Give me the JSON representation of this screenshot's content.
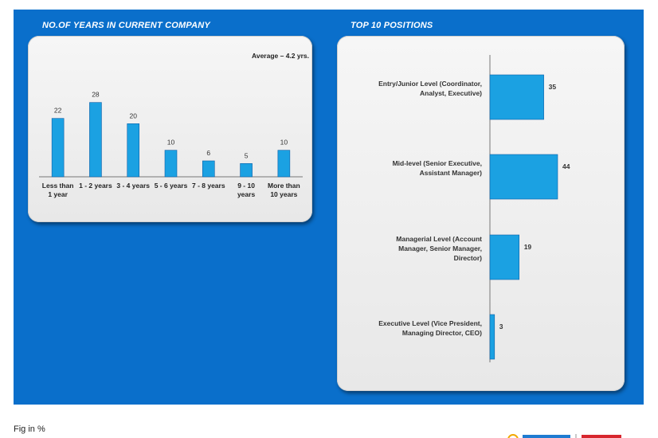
{
  "page": {
    "fig_note": "Fig in %"
  },
  "colors": {
    "background": "#0a6fcb",
    "bar": "#1ba1e2",
    "panel": "#eeeeee"
  },
  "chart_data": [
    {
      "type": "bar",
      "title": "NO.OF YEARS IN CURRENT COMPANY",
      "annotation": "Average – 4.2 yrs.",
      "categories": [
        "Less than 1 year",
        "1 - 2 years",
        "3 - 4 years",
        "5 - 6 years",
        "7 - 8 years",
        "9 - 10 years",
        "More than 10 years"
      ],
      "category_lines": [
        [
          "Less than",
          "1 year"
        ],
        [
          "1 - 2 years"
        ],
        [
          "3 - 4 years"
        ],
        [
          "5 - 6 years"
        ],
        [
          "7 - 8 years"
        ],
        [
          "9 - 10",
          "years"
        ],
        [
          "More than",
          "10 years"
        ]
      ],
      "values": [
        22,
        28,
        20,
        10,
        6,
        5,
        10
      ],
      "ylim": [
        0,
        30
      ],
      "grid": false,
      "legend": "none"
    },
    {
      "type": "bar",
      "orientation": "horizontal",
      "title": "TOP 10 POSITIONS",
      "categories": [
        "Entry/Junior Level (Coordinator, Analyst, Executive)",
        "Mid-level (Senior Executive, Assistant Manager)",
        "Managerial Level (Account Manager, Senior Manager, Director)",
        "Executive Level (Vice President, Managing Director, CEO)"
      ],
      "category_lines": [
        [
          "Entry/Junior Level (Coordinator,",
          "Analyst, Executive)"
        ],
        [
          "Mid-level (Senior Executive,",
          "Assistant Manager)"
        ],
        [
          "Managerial Level (Account",
          "Manager, Senior Manager,",
          "Director)"
        ],
        [
          "Executive Level (Vice President,",
          "Managing Director, CEO)"
        ]
      ],
      "values": [
        35,
        44,
        19,
        3
      ],
      "xlim": [
        0,
        50
      ],
      "grid": false,
      "legend": "none"
    }
  ]
}
